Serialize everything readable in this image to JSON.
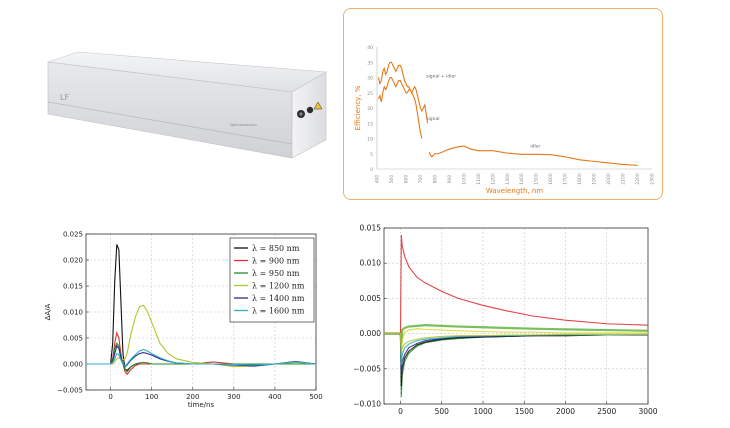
{
  "device": {
    "label": "LF",
    "brand": "lightconversion",
    "warning_icon": "laser-warning-icon",
    "body_color": "#e4e6e9"
  },
  "efficiency_chart": {
    "chart_data": {
      "type": "line",
      "ylabel": "Efficiency, %",
      "xlabel": "Wavelength, nm",
      "ylim": [
        0,
        40
      ],
      "xlim": [
        400,
        2300
      ],
      "xticks": [
        400,
        500,
        600,
        700,
        800,
        900,
        1000,
        1100,
        1200,
        1300,
        1400,
        1500,
        1600,
        1700,
        1800,
        1900,
        2000,
        2100,
        2200,
        2300
      ],
      "yticks": [
        0,
        5,
        10,
        15,
        20,
        25,
        30,
        35,
        40
      ],
      "color": "#e67817",
      "annotations": [
        {
          "text": "signal + idler",
          "x": 740,
          "y": 30
        },
        {
          "text": "signal",
          "x": 740,
          "y": 16
        },
        {
          "text": "idler",
          "x": 1460,
          "y": 7
        }
      ],
      "series": [
        {
          "x": [
            410,
            420,
            430,
            440,
            450,
            460,
            470,
            480,
            490,
            500,
            510,
            520,
            530,
            540,
            550,
            560,
            570,
            580,
            590,
            600,
            610,
            620,
            630,
            640,
            650,
            660,
            670,
            680,
            690,
            700,
            710
          ],
          "y": [
            30,
            28,
            29,
            32,
            33,
            31,
            32,
            34,
            35,
            35,
            34,
            33,
            32,
            33,
            34,
            34,
            33,
            31,
            29,
            28,
            27,
            27,
            26,
            25,
            24,
            23,
            21,
            18,
            15,
            12,
            10
          ]
        },
        {
          "x": [
            410,
            420,
            430,
            440,
            450,
            460,
            470,
            480,
            490,
            500,
            510,
            520,
            530,
            540,
            550,
            560,
            570,
            580,
            590,
            600,
            610,
            620,
            630,
            640,
            650,
            660,
            670,
            680,
            690,
            700,
            710,
            720,
            730,
            740,
            750
          ],
          "y": [
            23,
            24,
            22,
            25,
            27,
            26,
            27,
            29,
            30,
            30,
            29,
            28,
            27,
            28,
            29,
            29,
            28,
            27,
            26,
            25,
            25,
            26,
            26,
            25,
            26,
            27,
            26,
            24,
            22,
            20,
            19,
            20,
            21,
            18,
            15
          ]
        },
        {
          "x": [
            760,
            770,
            780,
            790,
            800,
            820,
            850,
            880,
            900,
            950,
            1000,
            1050,
            1100,
            1200,
            1300,
            1400,
            1500,
            1600,
            1700,
            1800,
            1900,
            2000,
            2100,
            2200
          ],
          "y": [
            5.5,
            4.5,
            4,
            4.5,
            5,
            5,
            5.5,
            6.2,
            6.5,
            7.2,
            7.5,
            6.5,
            6,
            6,
            5.2,
            4.8,
            4.8,
            4.7,
            4,
            3,
            2.5,
            2,
            1.5,
            1.2
          ]
        }
      ]
    }
  },
  "ta_chart_left": {
    "chart_data": {
      "type": "line",
      "xlabel": "time/ns",
      "ylabel": "ΔA/A",
      "xlim": [
        -60,
        500
      ],
      "ylim": [
        -0.005,
        0.025
      ],
      "xticks": [
        0,
        100,
        200,
        300,
        400,
        500
      ],
      "yticks": [
        -0.005,
        0.0,
        0.005,
        0.01,
        0.015,
        0.02,
        0.025
      ],
      "ytick_labels": [
        "−0.005",
        "0.000",
        "0.005",
        "0.010",
        "0.015",
        "0.020",
        "0.025"
      ],
      "legend_position": "top-right",
      "x": [
        -60,
        -20,
        0,
        5,
        10,
        15,
        20,
        25,
        30,
        35,
        40,
        50,
        60,
        70,
        80,
        90,
        100,
        120,
        140,
        160,
        200,
        250,
        300,
        350,
        400,
        450,
        500
      ],
      "series": [
        {
          "name": "λ = 850 nm",
          "color": "#111111",
          "values": [
            0,
            0,
            0,
            0.004,
            0.016,
            0.023,
            0.022,
            0.012,
            0.002,
            -0.001,
            -0.0012,
            -0.0005,
            0,
            0,
            0,
            0,
            0,
            0,
            0,
            0,
            0,
            0,
            0,
            0,
            0,
            0,
            0
          ]
        },
        {
          "name": "λ = 900 nm",
          "color": "#e03030",
          "values": [
            0,
            0,
            0,
            0.001,
            0.004,
            0.006,
            0.005,
            0.002,
            0,
            -0.0015,
            -0.002,
            -0.001,
            -0.0003,
            0,
            0,
            0,
            0,
            0,
            0,
            0,
            0,
            0.0004,
            0,
            0,
            0,
            0.0004,
            0
          ]
        },
        {
          "name": "λ = 950 nm",
          "color": "#2a8a2a",
          "values": [
            0,
            0,
            0,
            0.0008,
            0.003,
            0.004,
            0.0035,
            0.0015,
            0,
            -0.001,
            -0.0015,
            -0.0005,
            0,
            0.0002,
            0.0003,
            0.0002,
            0,
            0,
            0,
            0,
            0,
            0,
            0,
            0,
            0,
            0,
            0
          ]
        },
        {
          "name": "λ = 1200 nm",
          "color": "#b8c030",
          "values": [
            0,
            0,
            0,
            0,
            0.0005,
            0.001,
            0.0012,
            0.001,
            0.0008,
            0.001,
            0.002,
            0.006,
            0.009,
            0.011,
            0.0113,
            0.01,
            0.008,
            0.004,
            0.002,
            0.001,
            0.0003,
            0,
            -0.0005,
            -0.0004,
            0,
            0.0003,
            0
          ]
        },
        {
          "name": "λ = 1400 nm",
          "color": "#2b2e8a",
          "values": [
            0,
            0,
            0,
            0.0005,
            0.002,
            0.0035,
            0.003,
            0.0012,
            0,
            -0.0005,
            -0.0002,
            0.0008,
            0.0015,
            0.002,
            0.0022,
            0.002,
            0.0017,
            0.001,
            0.0005,
            0.0002,
            0,
            0,
            -0.0002,
            -0.0004,
            0,
            0.0005,
            0
          ]
        },
        {
          "name": "λ = 1600 nm",
          "color": "#30b0c8",
          "values": [
            0,
            0,
            0,
            0.0003,
            0.001,
            0.002,
            0.0018,
            0.0008,
            0,
            -0.0004,
            0,
            0.001,
            0.0018,
            0.0025,
            0.0028,
            0.0025,
            0.002,
            0.0012,
            0.0006,
            0.0002,
            0,
            0,
            -0.0001,
            -0.0002,
            0,
            0.0004,
            0
          ]
        }
      ]
    }
  },
  "ta_chart_right": {
    "chart_data": {
      "type": "line",
      "xlim": [
        -200,
        3000
      ],
      "ylim": [
        -0.01,
        0.015
      ],
      "xticks": [
        0,
        500,
        1000,
        1500,
        2000,
        2500,
        3000
      ],
      "yticks": [
        -0.01,
        -0.005,
        0.0,
        0.005,
        0.01,
        0.015
      ],
      "ytick_labels": [
        "−0.010",
        "−0.005",
        "0.000",
        "0.005",
        "0.010",
        "0.015"
      ],
      "grid": true,
      "x": [
        -200,
        -50,
        0,
        10,
        20,
        50,
        100,
        200,
        300,
        500,
        700,
        1000,
        1300,
        1600,
        2000,
        2500,
        3000
      ],
      "series": [
        {
          "color": "#e03030",
          "values": [
            0.0001,
            0.0001,
            0.0001,
            0.014,
            0.0125,
            0.011,
            0.0095,
            0.008,
            0.0072,
            0.006,
            0.005,
            0.004,
            0.0032,
            0.0025,
            0.0019,
            0.0014,
            0.0012
          ]
        },
        {
          "color": "#6ab84a",
          "values": [
            0,
            0,
            0,
            -0.002,
            0.0005,
            0.0008,
            0.001,
            0.0011,
            0.0012,
            0.0011,
            0.001,
            0.0009,
            0.0008,
            0.0007,
            0.0006,
            0.0005,
            0.0004
          ]
        },
        {
          "color": "#d8d830",
          "values": [
            0,
            0,
            0,
            -0.004,
            -0.001,
            0.0002,
            0.0005,
            0.0007,
            0.0006,
            0.0005,
            0.0004,
            0.0003,
            0.0002,
            0.0002,
            0.0001,
            0.0001,
            0.0001
          ]
        },
        {
          "color": "#2a8a2a",
          "values": [
            0,
            0,
            0,
            -0.009,
            -0.006,
            -0.004,
            -0.0028,
            -0.0018,
            -0.0013,
            -0.0009,
            -0.0007,
            -0.0005,
            -0.0004,
            -0.0003,
            -0.0003,
            -0.0002,
            -0.0002
          ]
        },
        {
          "color": "#111111",
          "values": [
            0,
            0,
            0,
            -0.0075,
            -0.005,
            -0.0035,
            -0.0025,
            -0.0016,
            -0.0012,
            -0.0008,
            -0.0006,
            -0.0005,
            -0.0004,
            -0.0003,
            -0.0003,
            -0.0002,
            -0.0002
          ]
        },
        {
          "color": "#2b2e8a",
          "values": [
            0,
            0,
            0,
            -0.006,
            -0.004,
            -0.003,
            -0.002,
            -0.0014,
            -0.001,
            -0.0007,
            -0.0005,
            -0.0004,
            -0.0003,
            -0.0003,
            -0.0002,
            -0.0002,
            -0.0002
          ]
        },
        {
          "color": "#30b0c8",
          "values": [
            0,
            0,
            0,
            -0.0045,
            -0.003,
            -0.002,
            -0.0015,
            -0.001,
            -0.0008,
            -0.0006,
            -0.0004,
            -0.0003,
            -0.0003,
            -0.0002,
            -0.0002,
            -0.0002,
            -0.0001
          ]
        },
        {
          "color": "#b8c030",
          "values": [
            0,
            0,
            0,
            -0.003,
            -0.002,
            -0.0015,
            -0.0011,
            -0.0008,
            -0.0006,
            -0.0004,
            -0.0003,
            -0.0003,
            -0.0002,
            -0.0002,
            -0.0001,
            -0.0001,
            -0.0001
          ]
        }
      ]
    }
  }
}
